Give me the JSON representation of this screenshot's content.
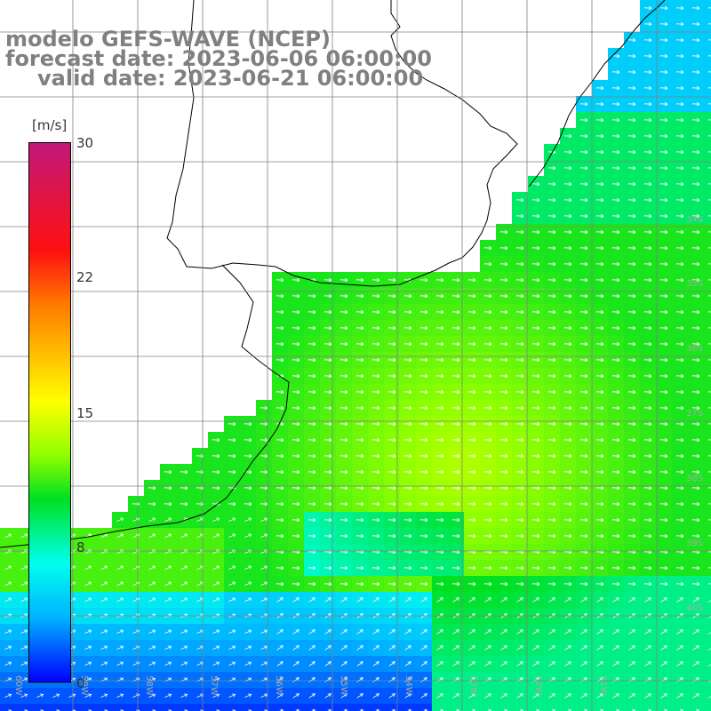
{
  "title": {
    "line1": "modelo GEFS-WAVE (NCEP)",
    "line2": "forecast date: 2023-06-06 06:00:00",
    "line3": "valid date: 2023-06-21 06:00:00"
  },
  "colorbar": {
    "unit": "[m/s]",
    "ticks": [
      "30",
      "22",
      "15",
      "8",
      "0"
    ],
    "tick_values": [
      30,
      22,
      15,
      8,
      0
    ],
    "min": 0,
    "max": 30,
    "colors": [
      "#0000ff",
      "#00b4ff",
      "#00ffee",
      "#00e020",
      "#90ff00",
      "#ffff00",
      "#ff7a00",
      "#ff1010",
      "#c2187a"
    ]
  },
  "map": {
    "variable": "wind speed and direction",
    "lat_labels": [
      "34S",
      "35S",
      "36S",
      "37S",
      "38S",
      "39S",
      "40S"
    ],
    "lon_labels": [
      "60W",
      "59W",
      "58W",
      "57W",
      "56W",
      "55W",
      "54W",
      "53W",
      "52W",
      "51W"
    ],
    "land_color": "#ffffff",
    "grid_color": "#808080",
    "arrow_color": "#ffffff"
  }
}
